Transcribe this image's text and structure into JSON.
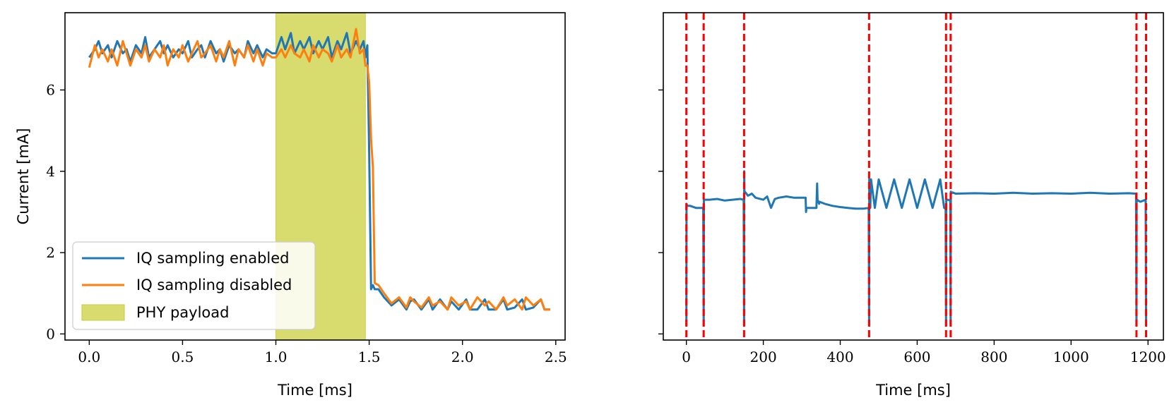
{
  "chart_data": [
    {
      "type": "line",
      "xlabel": "Time [ms]",
      "ylabel": "Current [mA]",
      "xlim": [
        -0.13,
        2.55
      ],
      "ylim": [
        -0.15,
        7.9
      ],
      "xticks": [
        0.0,
        0.5,
        1.0,
        1.5,
        2.0,
        2.5
      ],
      "xtick_labels": [
        "0.0",
        "0.5",
        "1.0",
        "1.5",
        "2.0",
        "2.5"
      ],
      "yticks": [
        0,
        2,
        4,
        6
      ],
      "ytick_labels": [
        "0",
        "2",
        "4",
        "6"
      ],
      "span": {
        "name": "PHY payload",
        "x0": 1.0,
        "x1": 1.48,
        "color": "#d8db6e"
      },
      "legend_position": "lower-left",
      "series": [
        {
          "name": "IQ sampling enabled",
          "color": "#1f77b4",
          "x": [
            0.0,
            0.03,
            0.05,
            0.07,
            0.1,
            0.12,
            0.15,
            0.18,
            0.2,
            0.22,
            0.25,
            0.28,
            0.3,
            0.32,
            0.35,
            0.38,
            0.4,
            0.42,
            0.45,
            0.48,
            0.5,
            0.53,
            0.55,
            0.58,
            0.6,
            0.62,
            0.65,
            0.68,
            0.7,
            0.72,
            0.75,
            0.78,
            0.8,
            0.83,
            0.85,
            0.88,
            0.9,
            0.93,
            0.95,
            0.98,
            1.0,
            1.03,
            1.05,
            1.08,
            1.1,
            1.13,
            1.15,
            1.18,
            1.2,
            1.23,
            1.25,
            1.28,
            1.3,
            1.33,
            1.35,
            1.38,
            1.4,
            1.43,
            1.45,
            1.47,
            1.48,
            1.49,
            1.5,
            1.51,
            1.52,
            1.53,
            1.55,
            1.58,
            1.62,
            1.66,
            1.7,
            1.72,
            1.74,
            1.78,
            1.82,
            1.84,
            1.88,
            1.92,
            1.94,
            1.98,
            2.02,
            2.04,
            2.08,
            2.12,
            2.14,
            2.18,
            2.22,
            2.24,
            2.28,
            2.32,
            2.34,
            2.38,
            2.42,
            2.44,
            2.47
          ],
          "values": [
            6.8,
            7.0,
            7.2,
            6.9,
            7.1,
            6.8,
            7.2,
            6.9,
            7.0,
            6.7,
            7.1,
            6.9,
            7.3,
            6.8,
            7.0,
            7.2,
            6.9,
            7.1,
            6.8,
            7.0,
            6.9,
            7.2,
            6.8,
            7.0,
            7.1,
            6.8,
            7.2,
            6.9,
            7.0,
            6.7,
            7.1,
            6.9,
            7.0,
            6.8,
            7.2,
            6.9,
            7.1,
            6.8,
            7.0,
            6.9,
            6.9,
            7.3,
            7.0,
            7.4,
            6.9,
            7.2,
            7.0,
            7.3,
            6.9,
            7.2,
            7.0,
            7.3,
            6.8,
            7.2,
            7.0,
            7.4,
            6.9,
            7.2,
            7.0,
            7.2,
            6.8,
            7.1,
            4.5,
            1.1,
            1.2,
            1.1,
            1.1,
            0.9,
            0.7,
            0.85,
            0.6,
            0.8,
            0.85,
            0.6,
            0.85,
            0.6,
            0.85,
            0.6,
            0.8,
            0.6,
            0.85,
            0.6,
            0.6,
            0.85,
            0.6,
            0.6,
            0.85,
            0.6,
            0.65,
            0.85,
            0.6,
            0.65,
            0.85,
            0.6,
            0.6
          ]
        },
        {
          "name": "IQ sampling disabled",
          "color": "#ff7f0e",
          "x": [
            0.0,
            0.03,
            0.05,
            0.07,
            0.1,
            0.12,
            0.15,
            0.18,
            0.2,
            0.22,
            0.25,
            0.28,
            0.3,
            0.32,
            0.35,
            0.38,
            0.4,
            0.42,
            0.45,
            0.48,
            0.5,
            0.53,
            0.55,
            0.58,
            0.6,
            0.62,
            0.65,
            0.68,
            0.7,
            0.72,
            0.75,
            0.78,
            0.8,
            0.83,
            0.85,
            0.88,
            0.9,
            0.93,
            0.95,
            0.98,
            1.0,
            1.03,
            1.05,
            1.08,
            1.1,
            1.13,
            1.15,
            1.18,
            1.2,
            1.23,
            1.25,
            1.28,
            1.3,
            1.33,
            1.35,
            1.38,
            1.4,
            1.43,
            1.45,
            1.47,
            1.48,
            1.49,
            1.5,
            1.51,
            1.52,
            1.53,
            1.55,
            1.58,
            1.62,
            1.66,
            1.7,
            1.72,
            1.74,
            1.78,
            1.82,
            1.84,
            1.88,
            1.92,
            1.94,
            1.98,
            2.02,
            2.04,
            2.08,
            2.12,
            2.14,
            2.18,
            2.22,
            2.24,
            2.28,
            2.32,
            2.34,
            2.38,
            2.42,
            2.44,
            2.47
          ],
          "values": [
            6.55,
            7.1,
            6.8,
            7.0,
            6.7,
            7.0,
            6.6,
            7.2,
            6.9,
            6.6,
            7.0,
            6.8,
            7.1,
            6.7,
            7.0,
            6.8,
            7.1,
            6.6,
            7.0,
            6.8,
            7.1,
            6.7,
            6.9,
            7.2,
            6.8,
            6.9,
            7.1,
            6.7,
            7.0,
            6.8,
            7.2,
            6.6,
            7.0,
            6.8,
            7.1,
            6.7,
            7.0,
            6.6,
            6.9,
            6.8,
            6.8,
            7.0,
            6.8,
            7.1,
            6.9,
            6.8,
            7.0,
            6.7,
            7.1,
            6.8,
            7.0,
            6.9,
            6.7,
            7.1,
            6.8,
            7.0,
            6.8,
            7.5,
            6.9,
            7.0,
            6.6,
            6.6,
            6.2,
            4.8,
            4.1,
            1.25,
            1.2,
            1.0,
            0.75,
            0.9,
            0.65,
            0.9,
            0.8,
            0.65,
            0.9,
            0.7,
            0.8,
            0.6,
            0.9,
            0.7,
            0.8,
            0.6,
            0.9,
            0.7,
            0.8,
            0.6,
            0.9,
            0.7,
            0.85,
            0.6,
            0.9,
            0.7,
            0.85,
            0.6,
            0.6
          ]
        }
      ]
    },
    {
      "type": "line",
      "xlabel": "Time [ms]",
      "ylabel": "",
      "xlim": [
        -60,
        1240
      ],
      "ylim": [
        -0.15,
        7.9
      ],
      "xticks": [
        0,
        200,
        400,
        600,
        800,
        1000,
        1200
      ],
      "xtick_labels": [
        "0",
        "200",
        "400",
        "600",
        "800",
        "1000",
        "1200"
      ],
      "yticks": [
        0,
        2,
        4,
        6
      ],
      "vlines": {
        "color": "#ff0000",
        "style": "dashed",
        "x": [
          0,
          45,
          150,
          475,
          675,
          687,
          1170,
          1195
        ]
      },
      "series": [
        {
          "color": "#1f77b4",
          "x": [
            0,
            0.5,
            2,
            10,
            25,
            44,
            45,
            45.5,
            46,
            48,
            60,
            80,
            100,
            120,
            140,
            149,
            150,
            150.5,
            151,
            152,
            160,
            170,
            180,
            200,
            210,
            220,
            230,
            240,
            260,
            280,
            300,
            310,
            311,
            312,
            330,
            338,
            340,
            341,
            345,
            346,
            360,
            380,
            400,
            420,
            440,
            460,
            474,
            475,
            475.5,
            476,
            478,
            480,
            490,
            500,
            520,
            540,
            560,
            580,
            600,
            620,
            640,
            660,
            670,
            674,
            675,
            675.5,
            676,
            680,
            686,
            687,
            687.5,
            688,
            692,
            700,
            750,
            800,
            850,
            900,
            950,
            1000,
            1050,
            1100,
            1150,
            1169,
            1170,
            1170.5,
            1171,
            1180,
            1194,
            1195,
            1195.5
          ],
          "values": [
            0.2,
            3.2,
            3.15,
            3.15,
            3.1,
            3.1,
            0.2,
            3.3,
            3.3,
            3.3,
            3.3,
            3.32,
            3.28,
            3.3,
            3.32,
            3.3,
            0.2,
            4.0,
            3.45,
            3.5,
            3.4,
            3.45,
            3.35,
            3.3,
            3.38,
            3.1,
            3.32,
            3.35,
            3.38,
            3.35,
            3.35,
            3.35,
            3.0,
            3.1,
            3.1,
            3.1,
            3.7,
            3.3,
            3.2,
            3.25,
            3.2,
            3.15,
            3.12,
            3.1,
            3.08,
            3.08,
            3.1,
            0.2,
            3.8,
            3.2,
            3.1,
            3.8,
            3.1,
            3.8,
            3.1,
            3.8,
            3.1,
            3.8,
            3.1,
            3.8,
            3.1,
            3.8,
            3.1,
            3.08,
            0.2,
            3.3,
            3.3,
            3.3,
            3.28,
            0.2,
            3.5,
            3.45,
            3.48,
            3.45,
            3.46,
            3.45,
            3.47,
            3.45,
            3.46,
            3.45,
            3.47,
            3.45,
            3.46,
            3.45,
            0.2,
            3.3,
            3.3,
            3.25,
            3.3,
            0.2,
            0.2
          ]
        }
      ]
    }
  ]
}
